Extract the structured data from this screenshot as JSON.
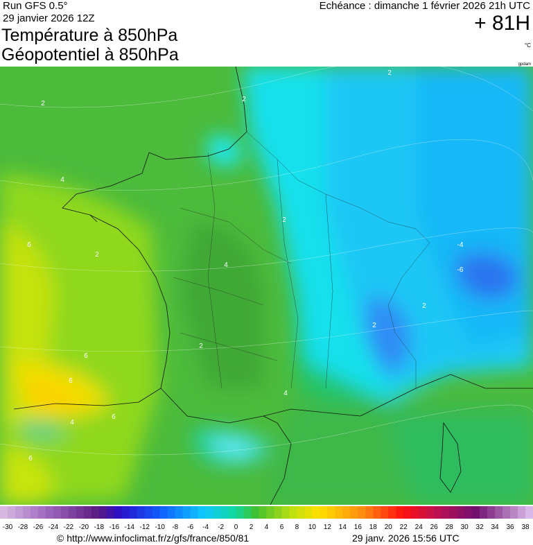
{
  "header": {
    "run": "Run GFS 0.5°",
    "run_date": "29 janvier 2026 12Z",
    "title_1": "Température à 850hPa",
    "title_2": "Géopotentiel à 850hPa",
    "valid_time": "Echéance : dimanche 1 février 2026 21h UTC",
    "lead_time": "+ 81H",
    "unit": "°C",
    "credit_small": "gpdam"
  },
  "map": {
    "contour_labels": [
      "2",
      "2",
      "4",
      "6",
      "2",
      "4",
      "2",
      "6",
      "6",
      "4",
      "6",
      "2",
      "-4",
      "-6",
      "2",
      "2",
      "4",
      "2",
      "6"
    ]
  },
  "legend": {
    "labels": [
      -30,
      -28,
      -26,
      -24,
      -22,
      -20,
      -18,
      -16,
      -14,
      -12,
      -10,
      -8,
      -6,
      -4,
      -2,
      0,
      2,
      4,
      6,
      8,
      10,
      12,
      14,
      16,
      18,
      20,
      22,
      24,
      26,
      28,
      30,
      32,
      34,
      36,
      38
    ]
  },
  "footer": {
    "url": "© http://www.infoclimat.fr/z/gfs/france/850/81",
    "timestamp": "29 janv. 2026 15:56 UTC"
  }
}
